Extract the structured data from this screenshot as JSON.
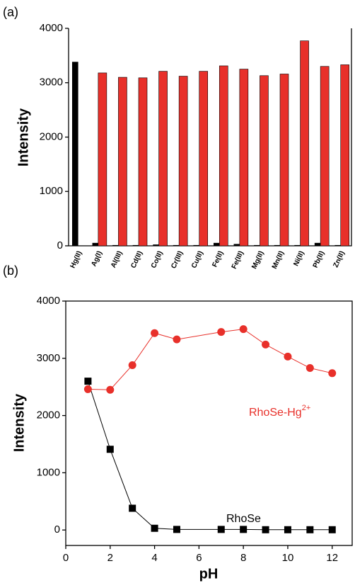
{
  "chart_data": [
    {
      "type": "bar",
      "panel_label": "(a)",
      "y_label": "Intensity",
      "categories": [
        "Hg(II)",
        "Ag(I)",
        "Al(III)",
        "Cd(II)",
        "Co(II)",
        "Cr(III)",
        "Cu(II)",
        "Fe(II)",
        "Fe(III)",
        "Mg(II)",
        "Mn(II)",
        "Ni(II)",
        "Pb(II)",
        "Zn(II)"
      ],
      "series": [
        {
          "color": "#000000",
          "values": [
            3380,
            50,
            10,
            10,
            20,
            10,
            10,
            50,
            30,
            10,
            10,
            10,
            50,
            10
          ]
        },
        {
          "color": "#e8302a",
          "values": [
            null,
            3180,
            3100,
            3090,
            3210,
            3120,
            3210,
            3310,
            3250,
            3130,
            3160,
            3770,
            3300,
            3330
          ]
        }
      ],
      "ylim": [
        0,
        4000
      ],
      "yticks": [
        0,
        1000,
        2000,
        3000,
        4000
      ],
      "grid": false
    },
    {
      "type": "line",
      "panel_label": "(b)",
      "x_label": "pH",
      "y_label": "Intensity",
      "series": [
        {
          "name": "RhoSe",
          "color": "#000000",
          "marker": "square",
          "x": [
            1,
            2,
            3,
            4,
            5,
            7,
            8,
            9,
            10,
            11,
            12
          ],
          "values": [
            2600,
            1410,
            380,
            30,
            10,
            10,
            10,
            5,
            5,
            5,
            5
          ]
        },
        {
          "name": "RhoSe-Hg2+",
          "color": "#e8302a",
          "marker": "circle",
          "x": [
            1,
            2,
            3,
            4,
            5,
            7,
            8,
            9,
            10,
            11,
            12
          ],
          "values": [
            2460,
            2450,
            2880,
            3440,
            3330,
            3460,
            3510,
            3240,
            3030,
            2830,
            2740
          ]
        }
      ],
      "xlim": [
        0,
        12.9
      ],
      "xticks": [
        0,
        2,
        4,
        6,
        8,
        10,
        12
      ],
      "ylim": [
        -270,
        4000
      ],
      "yticks": [
        0,
        1000,
        2000,
        3000,
        4000
      ],
      "grid": false
    }
  ]
}
